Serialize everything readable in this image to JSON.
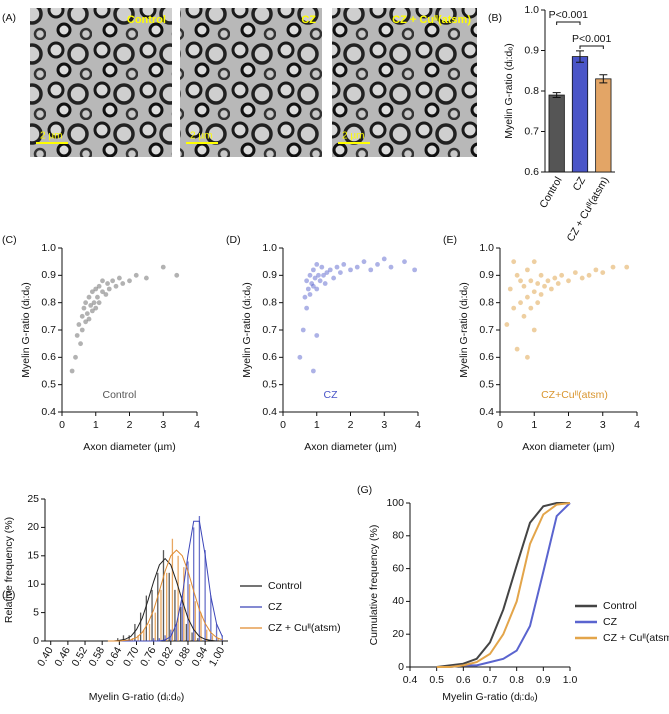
{
  "figure_labels": {
    "a": "(A)"
  },
  "micrographs": [
    {
      "label": "Control",
      "scale_bar": "2 µm"
    },
    {
      "label": "CZ",
      "scale_bar": "2 µm"
    },
    {
      "label": "CZ + Cuᴵᴵ(atsm)",
      "scale_bar": "2 µm"
    }
  ],
  "chart_data": [
    {
      "type": "bar",
      "panel": "(B)",
      "ylabel": "Myelin G-ratio (dᵢ:dₒ)",
      "categories": [
        "Control",
        "CZ",
        "CZ + Cuᴵᴵ(atsm)"
      ],
      "values": [
        0.79,
        0.885,
        0.83
      ],
      "errors": [
        0.006,
        0.014,
        0.01
      ],
      "colors": [
        "#555555",
        "#4a55c8",
        "#e3a566"
      ],
      "ylim": [
        0.6,
        1.0
      ],
      "yticks": [
        0.6,
        0.7,
        0.8,
        0.9,
        {
          "value": 1.0,
          "label": "1.0"
        }
      ],
      "annotations": [
        "P<0.001",
        "P<0.001"
      ]
    },
    {
      "type": "scatter",
      "panel": "(C)",
      "xlabel": "Axon diameter (µm)",
      "ylabel": "Myelin G-ratio (dᵢ:dₒ)",
      "annotation": "Control",
      "color": "#555555",
      "xlim": [
        0,
        4
      ],
      "xticks": [
        0,
        1,
        2,
        3,
        4
      ],
      "ylim": [
        0.4,
        1.0
      ],
      "yticks": [
        0.4,
        0.5,
        0.6,
        0.7,
        0.8,
        0.9,
        {
          "value": 1.0,
          "label": "1.0"
        }
      ],
      "x": [
        0.3,
        0.4,
        0.45,
        0.5,
        0.55,
        0.6,
        0.6,
        0.65,
        0.7,
        0.7,
        0.75,
        0.8,
        0.8,
        0.85,
        0.9,
        0.9,
        0.95,
        1.0,
        1.0,
        1.05,
        1.1,
        1.1,
        1.2,
        1.2,
        1.3,
        1.35,
        1.4,
        1.5,
        1.6,
        1.7,
        1.8,
        2.0,
        2.2,
        2.5,
        3.0,
        3.4
      ],
      "y": [
        0.55,
        0.6,
        0.68,
        0.72,
        0.65,
        0.75,
        0.7,
        0.78,
        0.73,
        0.8,
        0.76,
        0.82,
        0.74,
        0.79,
        0.84,
        0.77,
        0.8,
        0.85,
        0.78,
        0.82,
        0.86,
        0.8,
        0.84,
        0.88,
        0.83,
        0.87,
        0.85,
        0.88,
        0.86,
        0.89,
        0.87,
        0.88,
        0.9,
        0.89,
        0.93,
        0.9
      ]
    },
    {
      "type": "scatter",
      "panel": "(D)",
      "xlabel": "Axon diameter (µm)",
      "ylabel": "Myelin G-ratio (dᵢ:dₒ)",
      "annotation": "CZ",
      "color": "#4a55c8",
      "xlim": [
        0,
        4
      ],
      "xticks": [
        0,
        1,
        2,
        3,
        4
      ],
      "ylim": [
        0.4,
        1.0
      ],
      "yticks": [
        0.4,
        0.5,
        0.6,
        0.7,
        0.8,
        0.9,
        {
          "value": 1.0,
          "label": "1.0"
        }
      ],
      "x": [
        0.5,
        0.6,
        0.65,
        0.7,
        0.7,
        0.75,
        0.8,
        0.8,
        0.85,
        0.9,
        0.9,
        0.95,
        1.0,
        1.0,
        1.05,
        1.1,
        1.15,
        1.2,
        1.25,
        1.3,
        1.4,
        1.5,
        1.6,
        1.7,
        1.8,
        2.0,
        2.2,
        2.4,
        2.6,
        2.8,
        3.0,
        3.2,
        3.6,
        3.9,
        0.9,
        1.0
      ],
      "y": [
        0.6,
        0.7,
        0.82,
        0.78,
        0.88,
        0.85,
        0.9,
        0.83,
        0.87,
        0.92,
        0.86,
        0.89,
        0.94,
        0.85,
        0.9,
        0.88,
        0.93,
        0.9,
        0.87,
        0.91,
        0.92,
        0.89,
        0.93,
        0.91,
        0.94,
        0.92,
        0.93,
        0.95,
        0.92,
        0.94,
        0.96,
        0.93,
        0.95,
        0.92,
        0.55,
        0.68
      ]
    },
    {
      "type": "scatter",
      "panel": "(E)",
      "xlabel": "Axon diameter (µm)",
      "ylabel": "Myelin G-ratio (dᵢ:dₒ)",
      "annotation": "CZ+Cuᴵᴵ(atsm)",
      "color": "#d9952e",
      "xlim": [
        0,
        4
      ],
      "xticks": [
        0,
        1,
        2,
        3,
        4
      ],
      "ylim": [
        0.4,
        1.0
      ],
      "yticks": [
        0.4,
        0.5,
        0.6,
        0.7,
        0.8,
        0.9,
        {
          "value": 1.0,
          "label": "1.0"
        }
      ],
      "x": [
        0.2,
        0.3,
        0.4,
        0.5,
        0.6,
        0.6,
        0.7,
        0.7,
        0.8,
        0.8,
        0.9,
        0.9,
        1.0,
        1.0,
        1.1,
        1.1,
        1.2,
        1.2,
        1.3,
        1.4,
        1.5,
        1.6,
        1.7,
        1.8,
        2.0,
        2.2,
        2.4,
        2.6,
        2.8,
        3.0,
        3.3,
        3.7,
        0.5,
        0.8,
        1.0,
        0.4
      ],
      "y": [
        0.72,
        0.85,
        0.78,
        0.9,
        0.8,
        0.88,
        0.75,
        0.86,
        0.82,
        0.92,
        0.78,
        0.88,
        0.84,
        0.95,
        0.8,
        0.87,
        0.83,
        0.9,
        0.86,
        0.88,
        0.85,
        0.89,
        0.87,
        0.9,
        0.88,
        0.91,
        0.89,
        0.9,
        0.92,
        0.91,
        0.93,
        0.93,
        0.63,
        0.6,
        0.7,
        0.95
      ]
    },
    {
      "type": "histogram",
      "panel": "(F)",
      "xlabel": "Myelin G-ratio (dᵢ:dₒ)",
      "ylabel": "Relative frequency (%)",
      "xlim": [
        0.38,
        1.02
      ],
      "xticks": [
        {
          "value": 0.4,
          "label": "0.40"
        },
        0.46,
        0.52,
        0.58,
        0.64,
        {
          "value": 0.7,
          "label": "0.70"
        },
        0.76,
        0.82,
        0.88,
        0.94,
        {
          "value": 1.0,
          "label": "1.00"
        }
      ],
      "ylim": [
        0,
        25
      ],
      "yticks": [
        0,
        5,
        10,
        15,
        20,
        25
      ],
      "x": [
        0.6,
        0.62,
        0.64,
        0.66,
        0.68,
        0.7,
        0.72,
        0.74,
        0.76,
        0.78,
        0.8,
        0.82,
        0.84,
        0.86,
        0.88,
        0.9,
        0.92,
        0.94,
        0.96,
        0.98,
        1.0
      ],
      "series": [
        {
          "name": "Control",
          "color": "#222222",
          "values": [
            0,
            0,
            0.5,
            1,
            1,
            3,
            5,
            8,
            9,
            12,
            16,
            12,
            9,
            6,
            3,
            1.5,
            0.5,
            0,
            0,
            0,
            0
          ],
          "fit": [
            0,
            0,
            0.1,
            0.3,
            0.8,
            2.0,
            4.0,
            7.1,
            10.5,
            13.4,
            14.5,
            13.4,
            10.5,
            7.1,
            4.0,
            2.0,
            0.8,
            0.3,
            0.1,
            0,
            0
          ]
        },
        {
          "name": "CZ",
          "color": "#3a44b8",
          "values": [
            0,
            0,
            0,
            0,
            0,
            0,
            0,
            0,
            0.5,
            0.5,
            1,
            2,
            3,
            8,
            14,
            20,
            22,
            16,
            8,
            3,
            1
          ],
          "fit": [
            0,
            0,
            0,
            0,
            0,
            0,
            0,
            0,
            0,
            0,
            0.2,
            0.8,
            3.0,
            7.9,
            15.2,
            21.1,
            21.1,
            15.2,
            7.9,
            3.0,
            0.8
          ]
        },
        {
          "name": "CZ + Cuᴵᴵ(atsm)",
          "color": "#e08a2e",
          "values": [
            0,
            0,
            0,
            0,
            0.5,
            1,
            2,
            3,
            5,
            9,
            12,
            18,
            15,
            13,
            10,
            7,
            5,
            2,
            1,
            0.5,
            0
          ],
          "fit": [
            0,
            0,
            0,
            0.1,
            0.2,
            0.6,
            1.5,
            3.1,
            5.5,
            8.8,
            12.3,
            15.0,
            16,
            15.0,
            12.3,
            8.8,
            5.5,
            3.1,
            1.5,
            0.6,
            0.2
          ]
        }
      ]
    },
    {
      "type": "line",
      "panel": "(G)",
      "xlabel": "Myelin G-ratio (dᵢ:dₒ)",
      "ylabel": "Cumulative frequency (%)",
      "xlim": [
        0.4,
        1.0
      ],
      "xticks": [
        0.4,
        0.5,
        0.6,
        0.7,
        0.8,
        0.9,
        {
          "value": 1.0,
          "label": "1.0"
        }
      ],
      "ylim": [
        0,
        100
      ],
      "yticks": [
        0,
        20,
        40,
        60,
        80,
        100
      ],
      "x": [
        0.5,
        0.55,
        0.6,
        0.65,
        0.7,
        0.75,
        0.8,
        0.85,
        0.9,
        0.95,
        1.0
      ],
      "series": [
        {
          "name": "Control",
          "color": "#444444",
          "values": [
            0,
            1,
            2,
            5,
            15,
            35,
            62,
            88,
            98,
            100,
            100
          ]
        },
        {
          "name": "CZ",
          "color": "#5a64cf",
          "values": [
            0,
            0,
            1,
            1,
            3,
            5,
            10,
            25,
            58,
            92,
            100
          ]
        },
        {
          "name": "CZ + Cuᴵᴵ(atsm)",
          "color": "#e3a54a",
          "values": [
            0,
            0,
            1,
            3,
            8,
            20,
            40,
            75,
            93,
            99,
            100
          ]
        }
      ]
    }
  ]
}
